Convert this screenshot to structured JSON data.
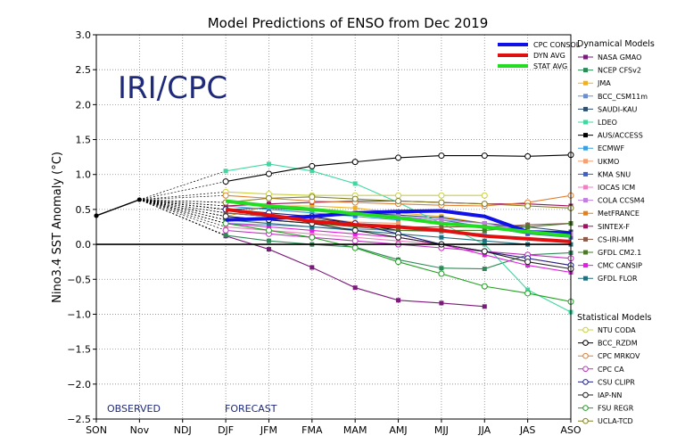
{
  "chart_data": {
    "type": "line",
    "title": "Model Predictions of ENSO from Dec 2019",
    "ylabel": "Nino3.4 SST Anomaly (°C)",
    "xlabel": "",
    "watermark": "IRI/CPC",
    "observed_label": "OBSERVED",
    "forecast_label": "FORECAST",
    "categories": [
      "SON",
      "Nov",
      "NDJ",
      "DJF",
      "JFM",
      "FMA",
      "MAM",
      "AMJ",
      "MJJ",
      "JJA",
      "JAS",
      "ASO"
    ],
    "ylim": [
      -2.5,
      3.0
    ],
    "yticks": [
      "3.0",
      "2.5",
      "2.0",
      "1.5",
      "1.0",
      "0.5",
      "0.0",
      "−0.5",
      "−1.0",
      "−1.5",
      "−2.0",
      "−2.5"
    ],
    "grid": true,
    "observed": {
      "x": [
        0,
        1
      ],
      "values": [
        0.41,
        0.64
      ],
      "color": "#000000"
    },
    "summary_series": [
      {
        "name": "CPC CONSOL",
        "color": "#1010e8",
        "values": [
          0.35,
          0.37,
          0.4,
          0.45,
          0.47,
          0.48,
          0.4,
          0.18,
          0.16
        ]
      },
      {
        "name": "DYN AVG",
        "color": "#e01010",
        "values": [
          0.5,
          0.42,
          0.33,
          0.28,
          0.25,
          0.2,
          0.12,
          0.08,
          0.04
        ]
      },
      {
        "name": "STAT AVG",
        "color": "#22dd22",
        "values": [
          0.62,
          0.55,
          0.5,
          0.44,
          0.38,
          0.3,
          0.25,
          0.18,
          0.12
        ]
      }
    ],
    "dynamical_legend_title": "Dynamical Models",
    "dynamical_models": [
      {
        "name": "NASA GMAO",
        "color": "#7a1a7a",
        "values": [
          0.12,
          -0.07,
          -0.33,
          -0.62,
          -0.8,
          -0.84,
          -0.89
        ]
      },
      {
        "name": "NCEP CFSv2",
        "color": "#2e8b57",
        "values": [
          0.13,
          0.05,
          0.0,
          -0.04,
          -0.22,
          -0.34,
          -0.35,
          -0.15,
          -0.12
        ]
      },
      {
        "name": "JMA",
        "color": "#f0b020",
        "values": [
          0.4,
          0.55,
          0.55,
          0.52,
          0.45,
          0.4,
          0.3
        ]
      },
      {
        "name": "BCC_CSM11m",
        "color": "#6a8ecf",
        "values": [
          0.3,
          0.28,
          0.25,
          0.22,
          0.2,
          0.18,
          0.15
        ]
      },
      {
        "name": "SAUDI-KAU",
        "color": "#2f4f6f",
        "values": [
          0.5,
          0.52,
          0.48,
          0.45,
          0.42,
          0.38,
          0.3,
          0.25,
          0.18
        ]
      },
      {
        "name": "LDEO",
        "color": "#40d8a0",
        "values": [
          1.05,
          1.15,
          1.05,
          0.87,
          0.6,
          0.3,
          0.0,
          -0.65,
          -0.97
        ]
      },
      {
        "name": "AUS/ACCESS",
        "color": "#000000",
        "values": [
          0.45,
          0.4,
          0.38,
          0.3,
          0.2
        ]
      },
      {
        "name": "ECMWF",
        "color": "#3aa0e0",
        "values": [
          0.55,
          0.5,
          0.45,
          0.4,
          0.35
        ]
      },
      {
        "name": "UKMO",
        "color": "#f4a070",
        "values": [
          0.5,
          0.42,
          0.38,
          0.32,
          0.3
        ]
      },
      {
        "name": "KMA SNU",
        "color": "#4060c0",
        "values": [
          0.35,
          0.38,
          0.4,
          0.42,
          0.4,
          0.35,
          0.25,
          0.15,
          0.1
        ]
      },
      {
        "name": "IOCAS ICM",
        "color": "#f080c0",
        "values": [
          0.25,
          0.2,
          0.15,
          0.1,
          0.05,
          0.0,
          -0.1,
          -0.2,
          -0.3
        ]
      },
      {
        "name": "COLA CCSM4",
        "color": "#c080e0",
        "values": [
          0.6,
          0.55,
          0.5,
          0.45,
          0.4,
          0.35,
          0.3,
          0.2,
          0.15
        ]
      },
      {
        "name": "MetFRANCE",
        "color": "#e08020",
        "values": [
          0.5,
          0.4,
          0.35,
          0.3,
          0.25
        ]
      },
      {
        "name": "SINTEX-F",
        "color": "#a01060",
        "values": [
          0.55,
          0.58,
          0.6,
          0.62,
          0.62,
          0.6,
          0.58,
          0.58,
          0.55
        ]
      },
      {
        "name": "CS-IRI-MM",
        "color": "#8a5a4a",
        "values": [
          0.45,
          0.4,
          0.35,
          0.3,
          0.25,
          0.25,
          0.25,
          0.28,
          0.3
        ]
      },
      {
        "name": "GFDL CM2.1",
        "color": "#4a7a2a",
        "values": [
          0.4,
          0.35,
          0.3,
          0.25,
          0.2,
          0.2,
          0.2,
          0.25,
          0.3
        ]
      },
      {
        "name": "CMC CANSIP",
        "color": "#e020e0",
        "values": [
          0.3,
          0.25,
          0.2,
          0.15,
          0.1,
          0.0,
          -0.15,
          -0.3,
          -0.4
        ]
      },
      {
        "name": "GFDL FLOR",
        "color": "#207080",
        "values": [
          0.35,
          0.3,
          0.25,
          0.2,
          0.15,
          0.1,
          0.05,
          0.0,
          0.0
        ]
      }
    ],
    "statistical_legend_title": "Statistical Models",
    "statistical_models": [
      {
        "name": "NTU CODA",
        "color": "#c8d040",
        "values": [
          0.75,
          0.72,
          0.7,
          0.7,
          0.7,
          0.7,
          0.7
        ]
      },
      {
        "name": "BCC_RZDM",
        "color": "#000000",
        "values": [
          0.9,
          1.01,
          1.12,
          1.18,
          1.24,
          1.27,
          1.27,
          1.26,
          1.28
        ]
      },
      {
        "name": "CPC MRKOV",
        "color": "#e08030",
        "values": [
          0.7,
          0.66,
          0.62,
          0.6,
          0.58,
          0.56,
          0.55,
          0.6,
          0.7
        ]
      },
      {
        "name": "CPC CA",
        "color": "#c030c0",
        "values": [
          0.2,
          0.15,
          0.1,
          0.05,
          0.0,
          -0.05,
          -0.1,
          -0.15,
          -0.2
        ]
      },
      {
        "name": "CSU CLIPR",
        "color": "#202080",
        "values": [
          0.5,
          0.45,
          0.4,
          0.3,
          0.15,
          0.0,
          -0.1,
          -0.2,
          -0.3
        ]
      },
      {
        "name": "IAP-NN",
        "color": "#202020",
        "values": [
          0.4,
          0.35,
          0.3,
          0.2,
          0.1,
          0.0,
          -0.1,
          -0.25,
          -0.35
        ]
      },
      {
        "name": "FSU REGR",
        "color": "#20a020",
        "values": [
          0.3,
          0.2,
          0.1,
          -0.05,
          -0.25,
          -0.42,
          -0.6,
          -0.7,
          -0.82
        ]
      },
      {
        "name": "UCLA-TCD",
        "color": "#808020",
        "values": [
          0.6,
          0.66,
          0.68,
          0.65,
          0.62,
          0.6,
          0.58,
          0.55,
          0.52
        ]
      }
    ]
  }
}
